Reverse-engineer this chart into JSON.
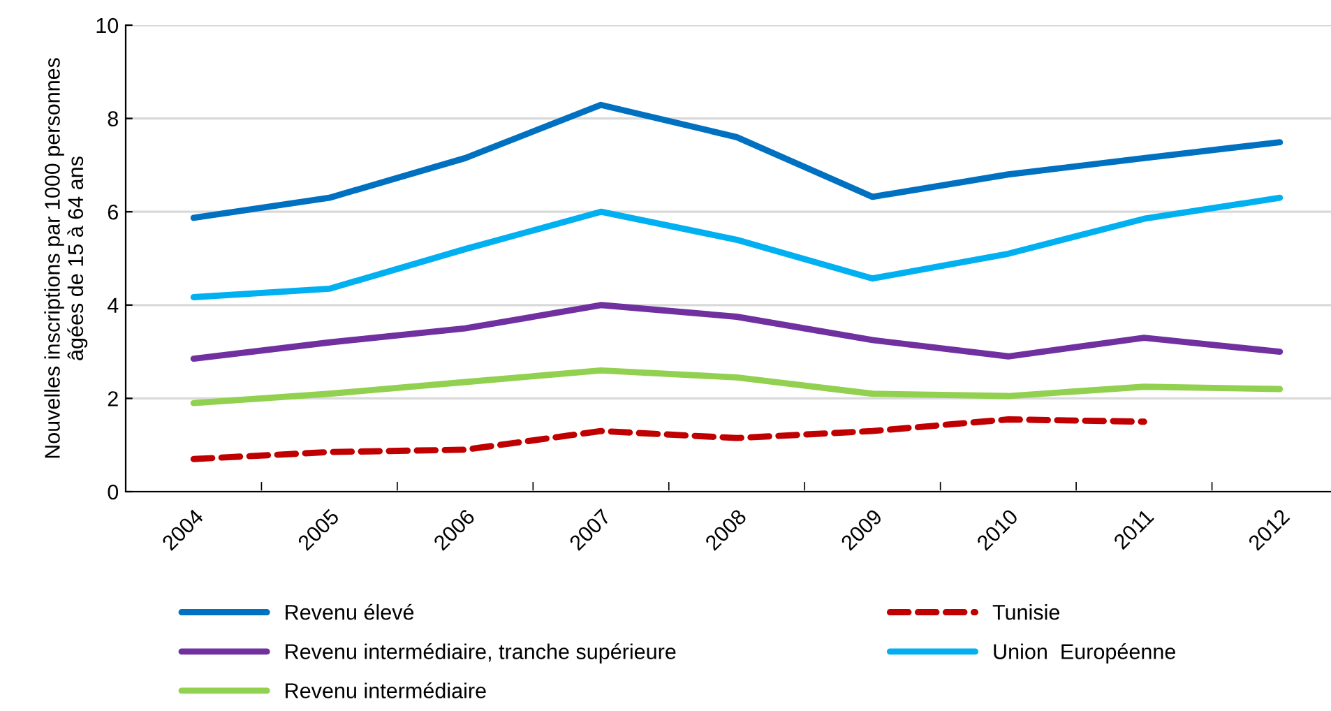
{
  "chart_data": {
    "type": "line",
    "ylabel": "Nouvelles inscriptions par 1000 personnes\nâgées de 15 à 64 ans",
    "categories": [
      "2004",
      "2005",
      "2006",
      "2007",
      "2008",
      "2009",
      "2010",
      "2011",
      "2012"
    ],
    "series": [
      {
        "name": "Revenu élevé",
        "color": "#0070c0",
        "values": [
          5.87,
          6.3,
          7.15,
          8.29,
          7.6,
          6.32,
          6.8,
          7.15,
          7.49
        ]
      },
      {
        "name": "Tunisie",
        "color": "#c00000",
        "line_style": "dashed",
        "values": [
          0.7,
          0.85,
          0.9,
          1.3,
          1.15,
          1.3,
          1.55,
          1.5,
          null
        ]
      },
      {
        "name": "Revenu intermédiaire, tranche supérieure",
        "color": "#7030a0",
        "values": [
          2.85,
          3.2,
          3.5,
          4.0,
          3.75,
          3.25,
          2.9,
          3.3,
          3.0
        ]
      },
      {
        "name": "Union  Européenne",
        "color": "#00b0f0",
        "values": [
          4.17,
          4.35,
          5.2,
          6.0,
          5.4,
          4.57,
          5.1,
          5.85,
          6.3
        ]
      },
      {
        "name": "Revenu intermédiaire",
        "color": "#92d050",
        "values": [
          1.9,
          2.1,
          2.35,
          2.6,
          2.45,
          2.1,
          2.05,
          2.25,
          2.2
        ]
      }
    ],
    "ylim": [
      0,
      10
    ],
    "yticks": [
      0,
      2,
      4,
      6,
      8,
      10
    ],
    "grid": "y",
    "legend": "bottom",
    "line_style": "solid",
    "marker": "none"
  }
}
